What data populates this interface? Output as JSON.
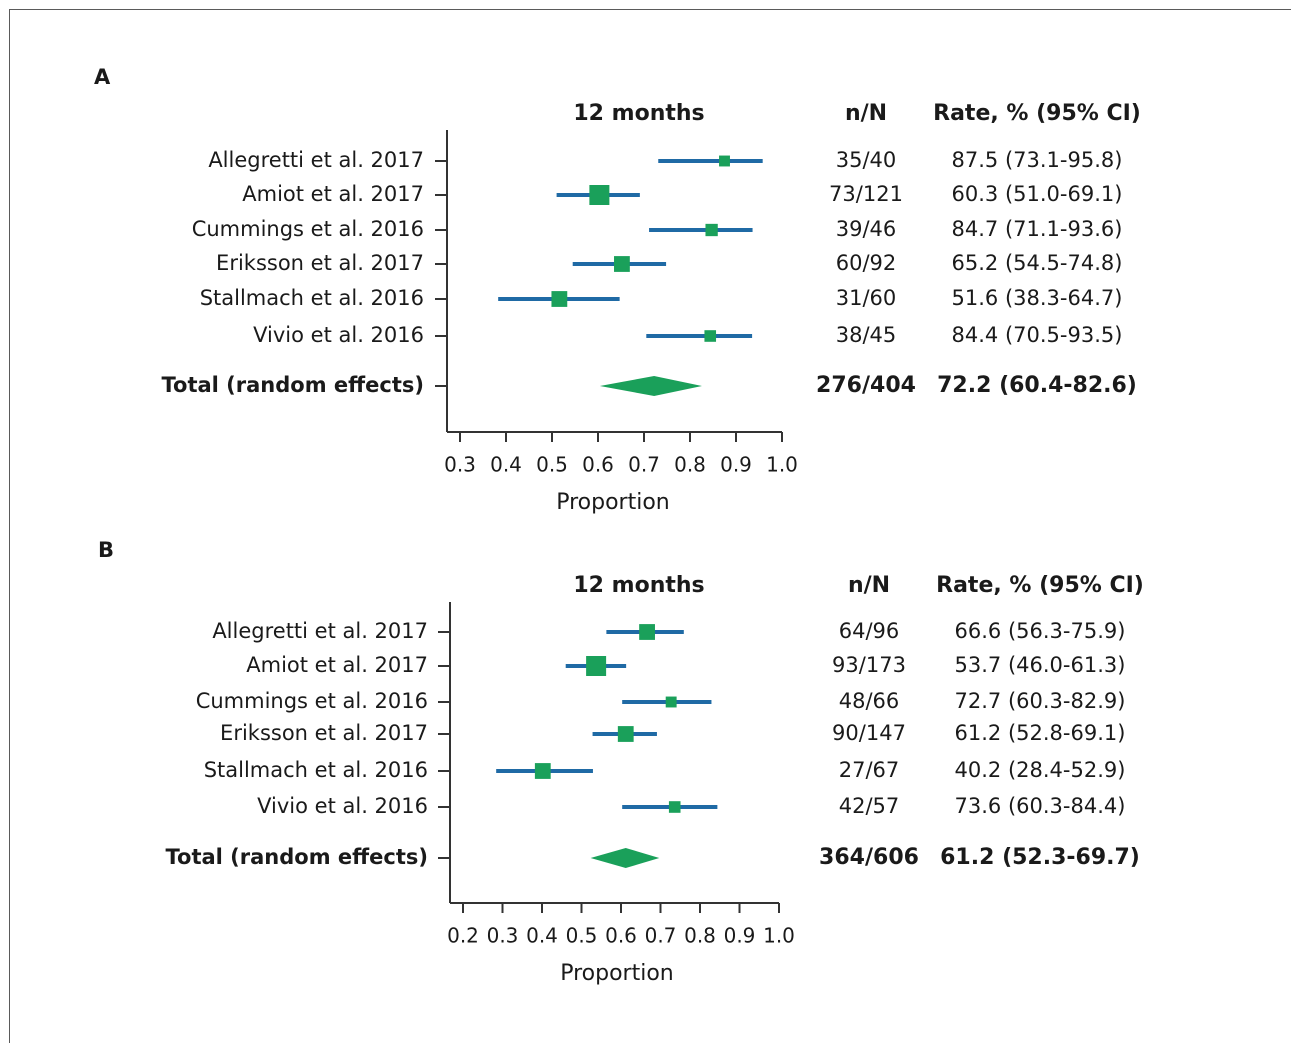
{
  "chart_data": [
    {
      "type": "forest",
      "panel_label": "A",
      "title": "12 months",
      "xlabel": "Proportion",
      "xlim": [
        0.3,
        1.0
      ],
      "xticks": [
        0.3,
        0.4,
        0.5,
        0.6,
        0.7,
        0.8,
        0.9,
        1.0
      ],
      "xtick_labels": [
        "0.3",
        "0.4",
        "0.5",
        "0.6",
        "0.7",
        "0.8",
        "0.9",
        "1.0"
      ],
      "col_headers": {
        "nN": "n/N",
        "rate": "Rate, % (95% CI)"
      },
      "studies": [
        {
          "label": "Allegretti et al. 2017",
          "nN": "35/40",
          "rate": "87.5 (73.1-95.8)",
          "est": 0.875,
          "lo": 0.731,
          "hi": 0.958,
          "weight": 0.7
        },
        {
          "label": "Amiot et al. 2017",
          "nN": "73/121",
          "rate": "60.3 (51.0-69.1)",
          "est": 0.603,
          "lo": 0.51,
          "hi": 0.691,
          "weight": 2.0
        },
        {
          "label": "Cummings et al. 2016",
          "nN": "39/46",
          "rate": "84.7 (71.1-93.6)",
          "est": 0.847,
          "lo": 0.711,
          "hi": 0.936,
          "weight": 0.9
        },
        {
          "label": "Eriksson et al. 2017",
          "nN": "60/92",
          "rate": "65.2 (54.5-74.8)",
          "est": 0.652,
          "lo": 0.545,
          "hi": 0.748,
          "weight": 1.4
        },
        {
          "label": "Stallmach et al. 2016",
          "nN": "31/60",
          "rate": "51.6 (38.3-64.7)",
          "est": 0.516,
          "lo": 0.383,
          "hi": 0.647,
          "weight": 1.4
        },
        {
          "label": "Vivio et al. 2016",
          "nN": "38/45",
          "rate": "84.4 (70.5-93.5)",
          "est": 0.844,
          "lo": 0.705,
          "hi": 0.935,
          "weight": 0.8
        }
      ],
      "total": {
        "label": "Total (random effects)",
        "nN": "276/404",
        "rate": "72.2 (60.4-82.6)",
        "est": 0.722,
        "lo": 0.604,
        "hi": 0.826
      }
    },
    {
      "type": "forest",
      "panel_label": "B",
      "title": "12 months",
      "xlabel": "Proportion",
      "xlim": [
        0.2,
        1.0
      ],
      "xticks": [
        0.2,
        0.3,
        0.4,
        0.5,
        0.6,
        0.7,
        0.8,
        0.9,
        1.0
      ],
      "xtick_labels": [
        "0.2",
        "0.3",
        "0.4",
        "0.5",
        "0.6",
        "0.7",
        "0.8",
        "0.9",
        "1.0"
      ],
      "col_headers": {
        "nN": "n/N",
        "rate": "Rate, % (95% CI)"
      },
      "studies": [
        {
          "label": "Allegretti et al. 2017",
          "nN": "64/96",
          "rate": "66.6 (56.3-75.9)",
          "est": 0.666,
          "lo": 0.563,
          "hi": 0.759,
          "weight": 1.4
        },
        {
          "label": "Amiot et al. 2017",
          "nN": "93/173",
          "rate": "53.7 (46.0-61.3)",
          "est": 0.537,
          "lo": 0.46,
          "hi": 0.613,
          "weight": 2.0
        },
        {
          "label": "Cummings et al. 2016",
          "nN": "48/66",
          "rate": "72.7 (60.3-82.9)",
          "est": 0.727,
          "lo": 0.603,
          "hi": 0.829,
          "weight": 0.7
        },
        {
          "label": "Eriksson et al. 2017",
          "nN": "90/147",
          "rate": "61.2 (52.8-69.1)",
          "est": 0.612,
          "lo": 0.528,
          "hi": 0.691,
          "weight": 1.4
        },
        {
          "label": "Stallmach et al. 2016",
          "nN": "27/67",
          "rate": "40.2 (28.4-52.9)",
          "est": 0.402,
          "lo": 0.284,
          "hi": 0.529,
          "weight": 1.4
        },
        {
          "label": "Vivio et al. 2016",
          "nN": "42/57",
          "rate": "73.6 (60.3-84.4)",
          "est": 0.736,
          "lo": 0.603,
          "hi": 0.844,
          "weight": 0.8
        }
      ],
      "total": {
        "label": "Total (random effects)",
        "nN": "364/606",
        "rate": "61.2 (52.3-69.7)",
        "est": 0.612,
        "lo": 0.523,
        "hi": 0.697
      }
    }
  ],
  "colors": {
    "ci_line": "#1f6aa5",
    "marker": "#1aa05a",
    "axis": "#333333",
    "text": "#1a1a1a"
  }
}
